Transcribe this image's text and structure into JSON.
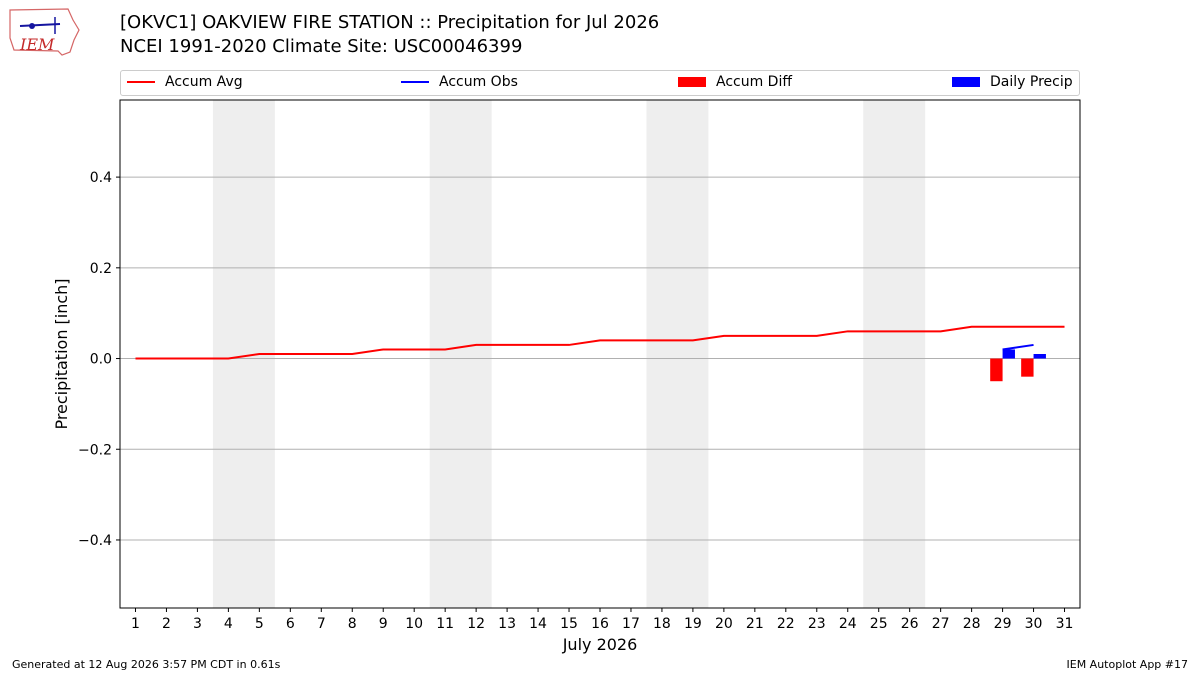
{
  "header": {
    "title_line1": "[OKVC1] OAKVIEW FIRE STATION :: Precipitation for Jul 2026",
    "title_line2": "NCEI 1991-2020 Climate Site: USC00046399"
  },
  "logo": {
    "text": "IEM",
    "icon": "iem-iowa-logo"
  },
  "legend": [
    {
      "label": "Accum Avg",
      "kind": "line",
      "color": "#ff0000"
    },
    {
      "label": "Accum Obs",
      "kind": "line",
      "color": "#0000ff"
    },
    {
      "label": "Accum Diff",
      "kind": "patch",
      "color": "#ff0000"
    },
    {
      "label": "Daily Precip",
      "kind": "patch",
      "color": "#0000ff"
    }
  ],
  "footer": {
    "left": "Generated at 12 Aug 2026 3:57 PM CDT in 0.61s",
    "right": "IEM Autoplot App #17"
  },
  "chart_data": {
    "type": "line",
    "xlabel": "July 2026",
    "ylabel": "Precipitation [inch]",
    "xlim": [
      0.5,
      31.5
    ],
    "ylim": [
      -0.55,
      0.57
    ],
    "yticks": [
      -0.4,
      -0.2,
      0.0,
      0.2,
      0.4
    ],
    "ytick_labels": [
      "−0.4",
      "−0.2",
      "0.0",
      "0.2",
      "0.4"
    ],
    "x": [
      1,
      2,
      3,
      4,
      5,
      6,
      7,
      8,
      9,
      10,
      11,
      12,
      13,
      14,
      15,
      16,
      17,
      18,
      19,
      20,
      21,
      22,
      23,
      24,
      25,
      26,
      27,
      28,
      29,
      30,
      31
    ],
    "weekend_shading": [
      [
        4,
        5
      ],
      [
        11,
        12
      ],
      [
        18,
        19
      ],
      [
        25,
        26
      ]
    ],
    "grid": "y",
    "series": [
      {
        "name": "Accum Avg",
        "kind": "line",
        "color": "#ff0000",
        "x": [
          1,
          2,
          3,
          4,
          5,
          6,
          7,
          8,
          9,
          10,
          11,
          12,
          13,
          14,
          15,
          16,
          17,
          18,
          19,
          20,
          21,
          22,
          23,
          24,
          25,
          26,
          27,
          28,
          29,
          30,
          31
        ],
        "values": [
          0.0,
          0.0,
          0.0,
          0.0,
          0.01,
          0.01,
          0.01,
          0.01,
          0.02,
          0.02,
          0.02,
          0.03,
          0.03,
          0.03,
          0.03,
          0.04,
          0.04,
          0.04,
          0.04,
          0.05,
          0.05,
          0.05,
          0.05,
          0.06,
          0.06,
          0.06,
          0.06,
          0.07,
          0.07,
          0.07,
          0.07
        ]
      },
      {
        "name": "Accum Obs",
        "kind": "line",
        "color": "#0000ff",
        "x": [
          29,
          30
        ],
        "values": [
          0.02,
          0.03
        ]
      },
      {
        "name": "Accum Diff",
        "kind": "bar",
        "color": "#ff0000",
        "x": [
          29,
          30
        ],
        "values": [
          -0.05,
          -0.04
        ]
      },
      {
        "name": "Daily Precip",
        "kind": "bar",
        "color": "#0000ff",
        "x": [
          29,
          30
        ],
        "values": [
          0.02,
          0.01
        ]
      }
    ]
  }
}
